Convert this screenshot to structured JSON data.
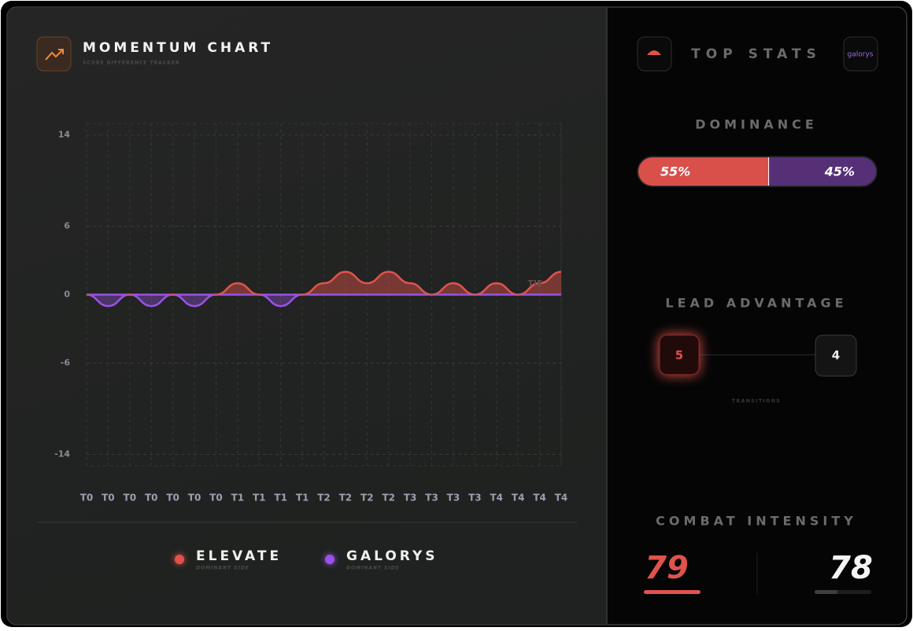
{
  "momentum": {
    "type": "line",
    "title": "MOMENTUM CHART",
    "subtitle": "SCORE DIFFERENCE TRACKER",
    "categories": [
      "T0",
      "T0",
      "T0",
      "T0",
      "T0",
      "T0",
      "T0",
      "T1",
      "T1",
      "T1",
      "T1",
      "T2",
      "T2",
      "T2",
      "T2",
      "T3",
      "T3",
      "T3",
      "T3",
      "T4",
      "T4",
      "T4",
      "T4"
    ],
    "values": [
      0,
      -1,
      0,
      -1,
      0,
      -1,
      0,
      1,
      0,
      -1,
      0,
      1,
      2,
      1,
      2,
      1,
      0,
      1,
      0,
      1,
      0,
      1,
      2
    ],
    "positive_color": "#e0534c",
    "negative_color": "#9a52e6",
    "ylim": [
      -15,
      15
    ],
    "yticks": [
      14,
      6,
      0,
      -6,
      -14
    ],
    "grid": true,
    "annotation": "TIE",
    "legend": [
      {
        "name": "ELEVATE",
        "note": "DOMINANT SIDE",
        "color": "#e0534c"
      },
      {
        "name": "GALORYS",
        "note": "DOMINANT SIDE",
        "color": "#9a52e6"
      }
    ]
  },
  "top_stats": {
    "title": "TOP STATS",
    "right_logo": "galorys",
    "dominance": {
      "title": "DOMINANCE",
      "values": [
        55,
        45
      ],
      "value_labels": [
        "55%",
        "45%"
      ],
      "colors": [
        "#d9504a",
        "#553077"
      ]
    },
    "lead_advantage": {
      "title": "LEAD ADVANTAGE",
      "values": [
        "5",
        "4"
      ],
      "note": "TRANSITIONS"
    },
    "combat_intensity": {
      "title": "COMBAT INTENSITY",
      "values": [
        "79",
        "78"
      ]
    }
  }
}
